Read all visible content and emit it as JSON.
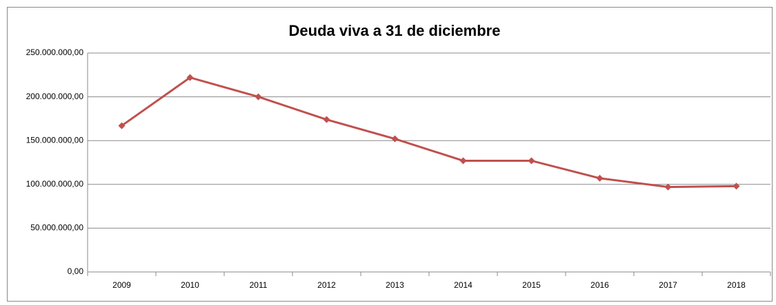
{
  "chart_data": {
    "type": "line",
    "title": "Deuda viva a 31 de diciembre",
    "categories": [
      "2009",
      "2010",
      "2011",
      "2012",
      "2013",
      "2014",
      "2015",
      "2016",
      "2017",
      "2018"
    ],
    "series": [
      {
        "color": "#c0504d",
        "values": [
          167000000,
          222000000,
          200000000,
          174000000,
          152000000,
          127000000,
          127000000,
          107000000,
          97000000,
          98000000
        ]
      }
    ],
    "ylim": [
      0,
      250000000
    ],
    "yticks": [
      {
        "value": 0,
        "label": "0,00"
      },
      {
        "value": 50000000,
        "label": "50.000.000,00"
      },
      {
        "value": 100000000,
        "label": "100.000.000,00"
      },
      {
        "value": 150000000,
        "label": "150.000.000,00"
      },
      {
        "value": 200000000,
        "label": "200.000.000,00"
      },
      {
        "value": 250000000,
        "label": "250.000.000,00"
      }
    ],
    "grid": true
  }
}
